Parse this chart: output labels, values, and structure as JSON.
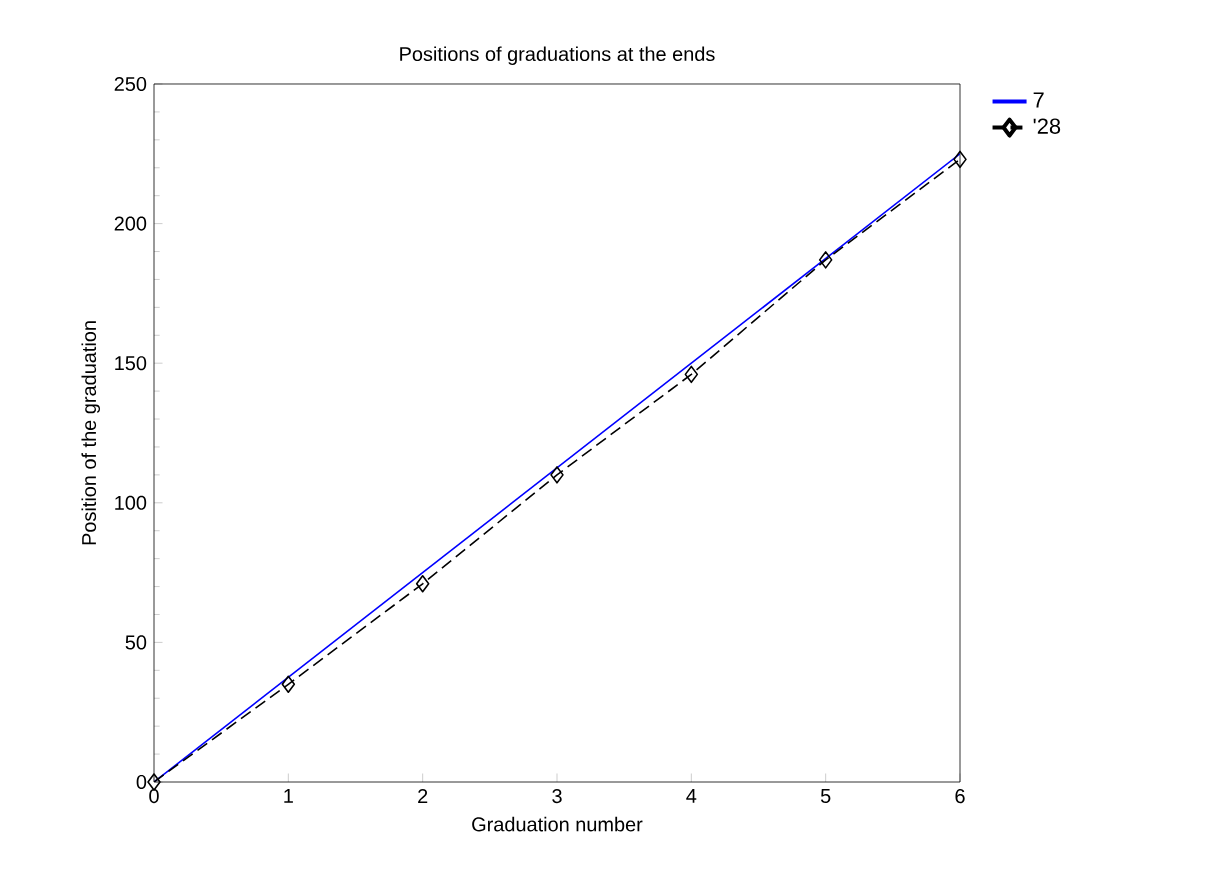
{
  "chart_data": {
    "type": "line",
    "title": "Positions of graduations at the ends",
    "xlabel": "Graduation number",
    "ylabel": "Position of the graduation",
    "xlim": [
      0,
      6
    ],
    "ylim": [
      0,
      250
    ],
    "xticks": [
      0,
      1,
      2,
      3,
      4,
      5,
      6
    ],
    "yticks": [
      0,
      50,
      100,
      150,
      200,
      250
    ],
    "legend": "top right",
    "grid": false,
    "series": [
      {
        "name": "7",
        "color": "#0000ff",
        "x": [
          0,
          6
        ],
        "values": [
          0,
          225
        ],
        "marker": "none",
        "line_style": "solid"
      },
      {
        "name": "'28",
        "color": "#000000",
        "x": [
          0,
          1,
          2,
          3,
          4,
          5,
          6
        ],
        "values": [
          0,
          35,
          71,
          110,
          146,
          187,
          223
        ],
        "marker": "diamond",
        "line_style": "dashed"
      }
    ]
  }
}
